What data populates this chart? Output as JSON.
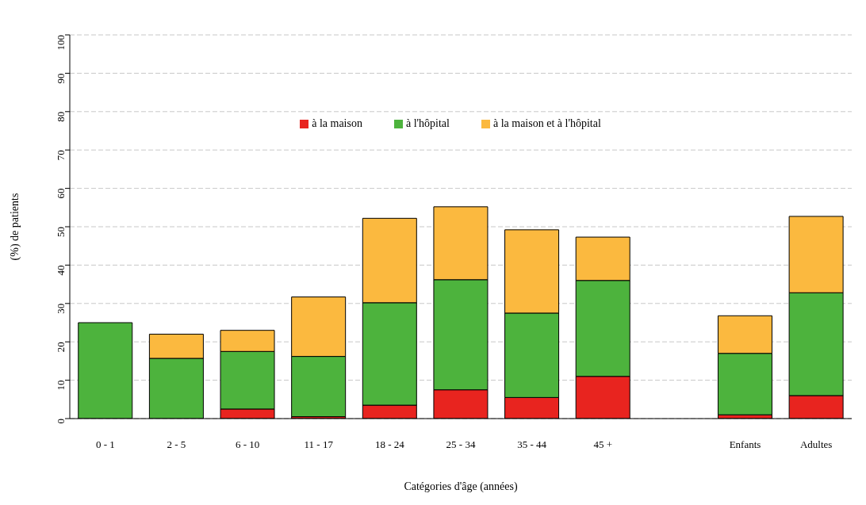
{
  "chart_data": {
    "type": "bar",
    "stacked": true,
    "xlabel": "Catégories d'âge (années)",
    "ylabel": "(%) de patients",
    "categories": [
      "0 - 1",
      "2 - 5",
      "6 - 10",
      "11 - 17",
      "18 - 24",
      "25 - 34",
      "35 - 44",
      "45 +",
      null,
      "Enfants",
      "Adultes"
    ],
    "series": [
      {
        "name": "à la maison",
        "color": "#e8241f",
        "values": [
          0,
          0,
          2.5,
          0.5,
          3.5,
          7.5,
          5.5,
          11,
          null,
          1,
          6
        ]
      },
      {
        "name": "à l'hôpital",
        "color": "#4db33d",
        "values": [
          25,
          15.7,
          15,
          15.7,
          26.7,
          28.7,
          22,
          25,
          null,
          16,
          26.8
        ]
      },
      {
        "name": "à la maison et à l'hôpital",
        "color": "#fbb93f",
        "values": [
          0,
          6.3,
          5.5,
          15.5,
          22,
          19,
          21.7,
          11.3,
          null,
          9.8,
          19.9
        ]
      }
    ],
    "ylim": [
      0,
      100
    ],
    "yticks": [
      0,
      10,
      20,
      30,
      40,
      50,
      60,
      70,
      80,
      90,
      100
    ],
    "grid": "y",
    "legend": "top"
  }
}
